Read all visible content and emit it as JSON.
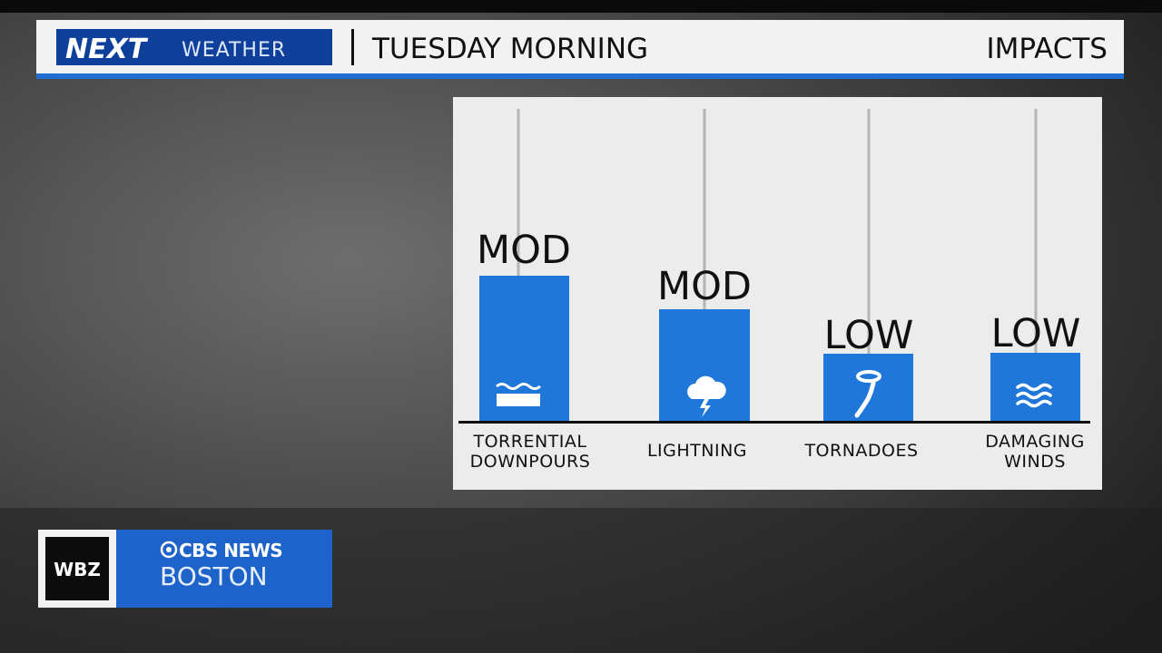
{
  "header": {
    "logo_next": "NEXT",
    "logo_weather": "WEATHER",
    "title": "TUESDAY MORNING",
    "section": "IMPACTS"
  },
  "impacts": [
    {
      "level": "MOD",
      "label_lines": [
        "TORRENTIAL",
        "DOWNPOURS"
      ]
    },
    {
      "level": "MOD",
      "label_lines": [
        "LIGHTNING"
      ]
    },
    {
      "level": "LOW",
      "label_lines": [
        "TORNADOES"
      ]
    },
    {
      "level": "LOW",
      "label_lines": [
        "DAMAGING",
        "WINDS"
      ]
    }
  ],
  "station": {
    "call": "WBZ",
    "network": "CBS NEWS",
    "city": "BOSTON"
  }
}
